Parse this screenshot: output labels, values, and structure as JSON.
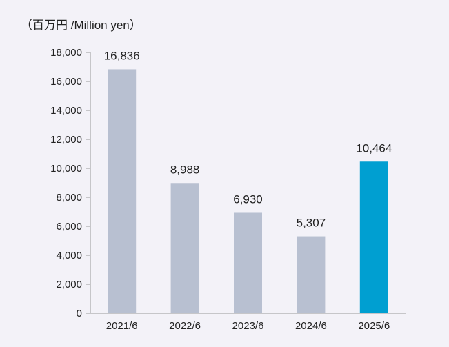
{
  "unit_label": "（百万円 /Million yen）",
  "colors": {
    "bar_default": "#b8c0d1",
    "bar_highlight": "#009fd1",
    "axis": "#9a9a9a"
  },
  "chart_data": {
    "type": "bar",
    "categories": [
      "2021/6",
      "2022/6",
      "2023/6",
      "2024/6",
      "2025/6"
    ],
    "values": [
      16836,
      8988,
      6930,
      5307,
      10464
    ],
    "data_labels": [
      "16,836",
      "8,988",
      "6,930",
      "5,307",
      "10,464"
    ],
    "highlight_index": 4,
    "ylim": [
      0,
      18000
    ],
    "yticks": [
      0,
      2000,
      4000,
      6000,
      8000,
      10000,
      12000,
      14000,
      16000,
      18000
    ],
    "ytick_labels": [
      "0",
      "2,000",
      "4,000",
      "6,000",
      "8,000",
      "10,000",
      "12,000",
      "14,000",
      "16,000",
      "18,000"
    ],
    "grid": false
  }
}
